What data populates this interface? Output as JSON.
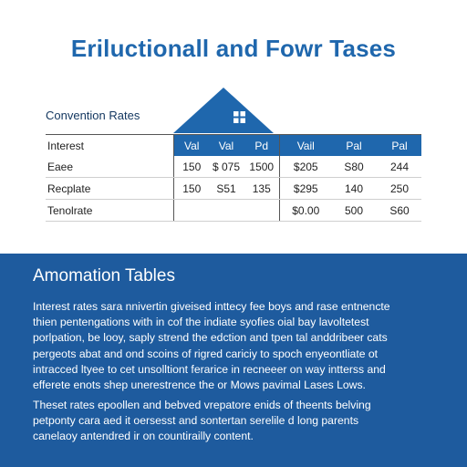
{
  "page": {
    "title": "Eriluctionall and Fowr Tases"
  },
  "table": {
    "caption": "Convention Rates",
    "header": [
      "Interest",
      "Val",
      "Val",
      "Pd",
      "Vail",
      "Pal",
      "Pal"
    ],
    "rows": [
      [
        "Eaee",
        "150",
        "$ 075",
        "1500",
        "$205",
        "S80",
        "244"
      ],
      [
        "Recplate",
        "150",
        "S51",
        "135",
        "$295",
        "140",
        "250"
      ],
      [
        "Tenolrate",
        "",
        "",
        "",
        "$0.00",
        "500",
        "S60"
      ]
    ]
  },
  "section": {
    "heading": "Amomation Tables",
    "paragraph1": [
      "Interest rates sara nnivertin giveised inttecy fee boys and rase entnencte",
      "thien pentengations with in cof the indiate syofies oial bay lavoltetest",
      "porlpation, be looy, saply strend the edction and tpen tal anddribeer cats",
      "pergeots abat and ond scoins of rigred cariciy to spoch enyeontliate ot",
      "intracced ltyee to cet unsolltiont ferarice in recneeer on way intterss and",
      "efferete enots shep unerestrence the or Mows pavimal Lases Lows."
    ],
    "paragraph2": [
      "Theset rates epoollen and bebved vrepatore enids of theents belving",
      "petponty cara aed it oersesst and sontertan serelile d long parents",
      "canelaoy antendred ir on countirailly content."
    ]
  },
  "colors": {
    "accent": "#1f67ad",
    "panel": "#1e5b9e",
    "text_dark": "#222222"
  },
  "icons": {
    "roof": "house-roof-icon"
  }
}
